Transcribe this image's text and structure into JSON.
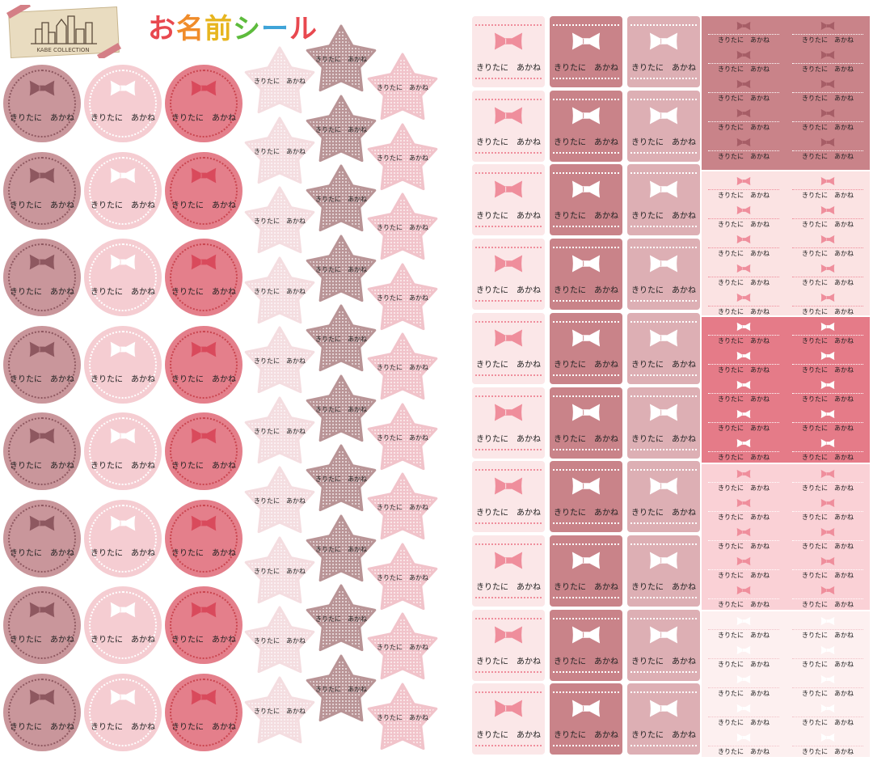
{
  "brand": {
    "logo_text": "KABE COLLECTION"
  },
  "title": {
    "chars": [
      "お",
      "名",
      "前",
      "シ",
      "ー",
      "ル"
    ]
  },
  "sticker_name": "きりたに　あかね",
  "colors": {
    "circle_a": "#c9969b",
    "circle_a_bow": "#8e5860",
    "circle_a_ring": "#8e5860",
    "circle_b": "#f5cdd2",
    "circle_b_bow": "#ffffff",
    "circle_b_ring": "#ffffff",
    "circle_c": "#e47f8b",
    "circle_c_bow": "#d94a5c",
    "circle_c_ring": "#c9454f",
    "star_a": "#f4dde0",
    "star_b": "#b99496",
    "star_c": "#f1c3ca",
    "sq_a": "#fbe7e8",
    "sq_a_bow": "#ef8e9c",
    "sq_a_dots": "#ef8e9c",
    "sq_b": "#c98389",
    "sq_b_bow": "#ffffff",
    "sq_b_dots": "#ffffff",
    "sq_c": "#ddafb4",
    "sq_c_bow": "#ffffff",
    "sq_c_dots": "#ffffff",
    "mini_blocks": [
      {
        "bg": "#c98389",
        "bow": "#a65d66",
        "dots": "#ffffff"
      },
      {
        "bg": "#fbe3e3",
        "bow": "#ef8e9c",
        "dots": "#ef8e9c"
      },
      {
        "bg": "#e57b88",
        "bow": "#ffffff",
        "dots": "#ffffff"
      },
      {
        "bg": "#fad1d6",
        "bow": "#ef8e9c",
        "dots": "#ffffff"
      },
      {
        "bg": "#fdf0f0",
        "bow": "#ffffff",
        "dots": "#f2c2c8"
      }
    ]
  },
  "icons": {
    "bow": "bow-icon",
    "logo": "city-skyline-icon"
  }
}
